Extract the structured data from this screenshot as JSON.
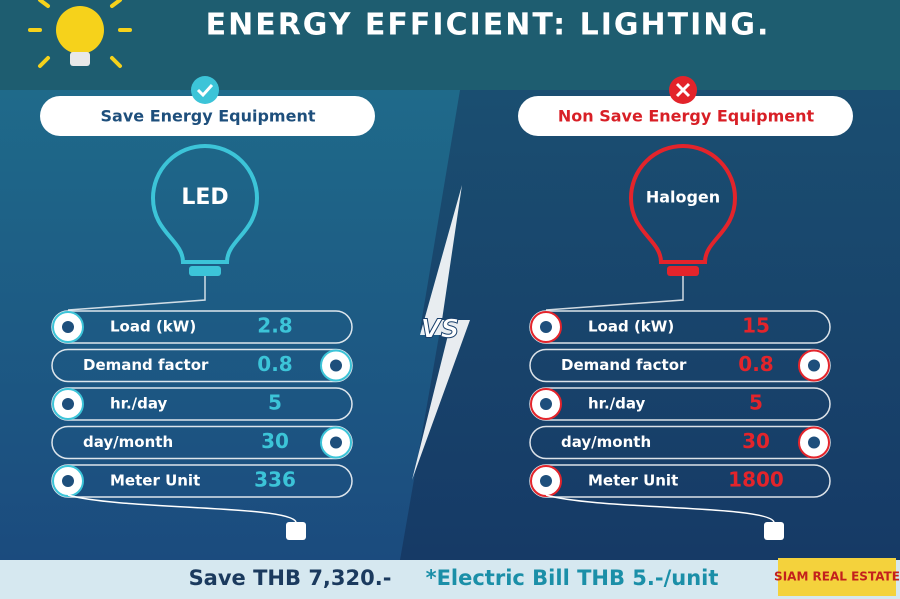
{
  "header": {
    "title": "ENERGY EFFICIENT: LIGHTING."
  },
  "vs": "VS",
  "panels": [
    {
      "badge": "Save Energy Equipment",
      "bulb": "LED",
      "rows": [
        {
          "label": "Load (kW)",
          "value": "2.8"
        },
        {
          "label": "Demand factor",
          "value": "0.8"
        },
        {
          "label": "hr./day",
          "value": "5"
        },
        {
          "label": "day/month",
          "value": "30"
        },
        {
          "label": "Meter Unit",
          "value": "336"
        }
      ]
    },
    {
      "badge": "Non Save Energy Equipment",
      "bulb": "Halogen",
      "rows": [
        {
          "label": "Load (kW)",
          "value": "15"
        },
        {
          "label": "Demand factor",
          "value": "0.8"
        },
        {
          "label": "hr./day",
          "value": "5"
        },
        {
          "label": "day/month",
          "value": "30"
        },
        {
          "label": "Meter Unit",
          "value": "1800"
        }
      ]
    }
  ],
  "footer": {
    "saving": "Save THB 7,320.-",
    "note": "*Electric Bill THB 5.-/unit"
  },
  "logo": "SIAM REAL ESTATE"
}
